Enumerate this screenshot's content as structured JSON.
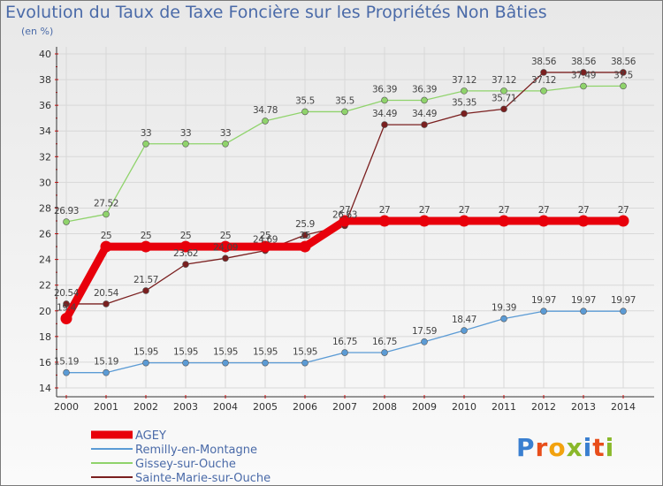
{
  "header": {
    "title": "Evolution du Taux de Taxe Foncière sur les Propriétés Non Bâties",
    "subtitle": "(en %)"
  },
  "logo": {
    "text": "Proxiti",
    "colors": [
      "#3a7fd0",
      "#e84e1b",
      "#f2a20f",
      "#8ab82a",
      "#3a7fd0",
      "#e84e1b",
      "#8ab82a"
    ]
  },
  "chart_data": {
    "type": "line",
    "title": "Evolution du Taux de Taxe Foncière sur les Propriétés Non Bâties",
    "ylabel": "(en %)",
    "xlabel": "",
    "x": [
      2000,
      2001,
      2002,
      2003,
      2004,
      2005,
      2006,
      2007,
      2008,
      2009,
      2010,
      2011,
      2012,
      2013,
      2014
    ],
    "ylim": [
      14,
      40
    ],
    "yticks": [
      14,
      16,
      18,
      20,
      22,
      24,
      26,
      28,
      30,
      32,
      34,
      36,
      38,
      40
    ],
    "grid": true,
    "legend_position": "bottom-left",
    "series": [
      {
        "name": "AGEY",
        "color": "#e8000b",
        "values": [
          19.4,
          25,
          25,
          25,
          25,
          25,
          25,
          27,
          27,
          27,
          27,
          27,
          27,
          27,
          27
        ],
        "labels": [
          "19.4",
          "25",
          "25",
          "25",
          "25",
          "25",
          "25",
          "27",
          "27",
          "27",
          "27",
          "27",
          "27",
          "27",
          "27"
        ]
      },
      {
        "name": "Remilly-en-Montagne",
        "color": "#5b9bd5",
        "values": [
          15.19,
          15.19,
          15.95,
          15.95,
          15.95,
          15.95,
          15.95,
          16.75,
          16.75,
          17.59,
          18.47,
          19.39,
          19.97,
          19.97,
          19.97
        ],
        "labels": [
          "15.19",
          "15.19",
          "15.95",
          "15.95",
          "15.95",
          "15.95",
          "15.95",
          "16.75",
          "16.75",
          "17.59",
          "18.47",
          "19.39",
          "19.97",
          "19.97",
          "19.97"
        ]
      },
      {
        "name": "Gissey-sur-Ouche",
        "color": "#8fd36b",
        "values": [
          26.93,
          27.52,
          33,
          33,
          33,
          34.78,
          35.5,
          35.5,
          36.39,
          36.39,
          37.12,
          37.12,
          37.12,
          37.49,
          37.5
        ],
        "labels": [
          "26.93",
          "27.52",
          "33",
          "33",
          "33",
          "34.78",
          "35.5",
          "35.5",
          "36.39",
          "36.39",
          "37.12",
          "37.12",
          "37.12",
          "37.49",
          "37.5"
        ]
      },
      {
        "name": "Sainte-Marie-sur-Ouche",
        "color": "#7a1f1f",
        "values": [
          20.54,
          20.54,
          21.57,
          23.62,
          24.09,
          24.69,
          25.9,
          26.63,
          34.49,
          34.49,
          35.35,
          35.71,
          38.56,
          38.56,
          38.56
        ],
        "labels": [
          "20.54",
          "20.54",
          "21.57",
          "23.62",
          "24.09",
          "24.69",
          "25.9",
          "26.63",
          "34.49",
          "34.49",
          "35.35",
          "35.71",
          "38.56",
          "38.56",
          "38.56"
        ]
      }
    ]
  }
}
